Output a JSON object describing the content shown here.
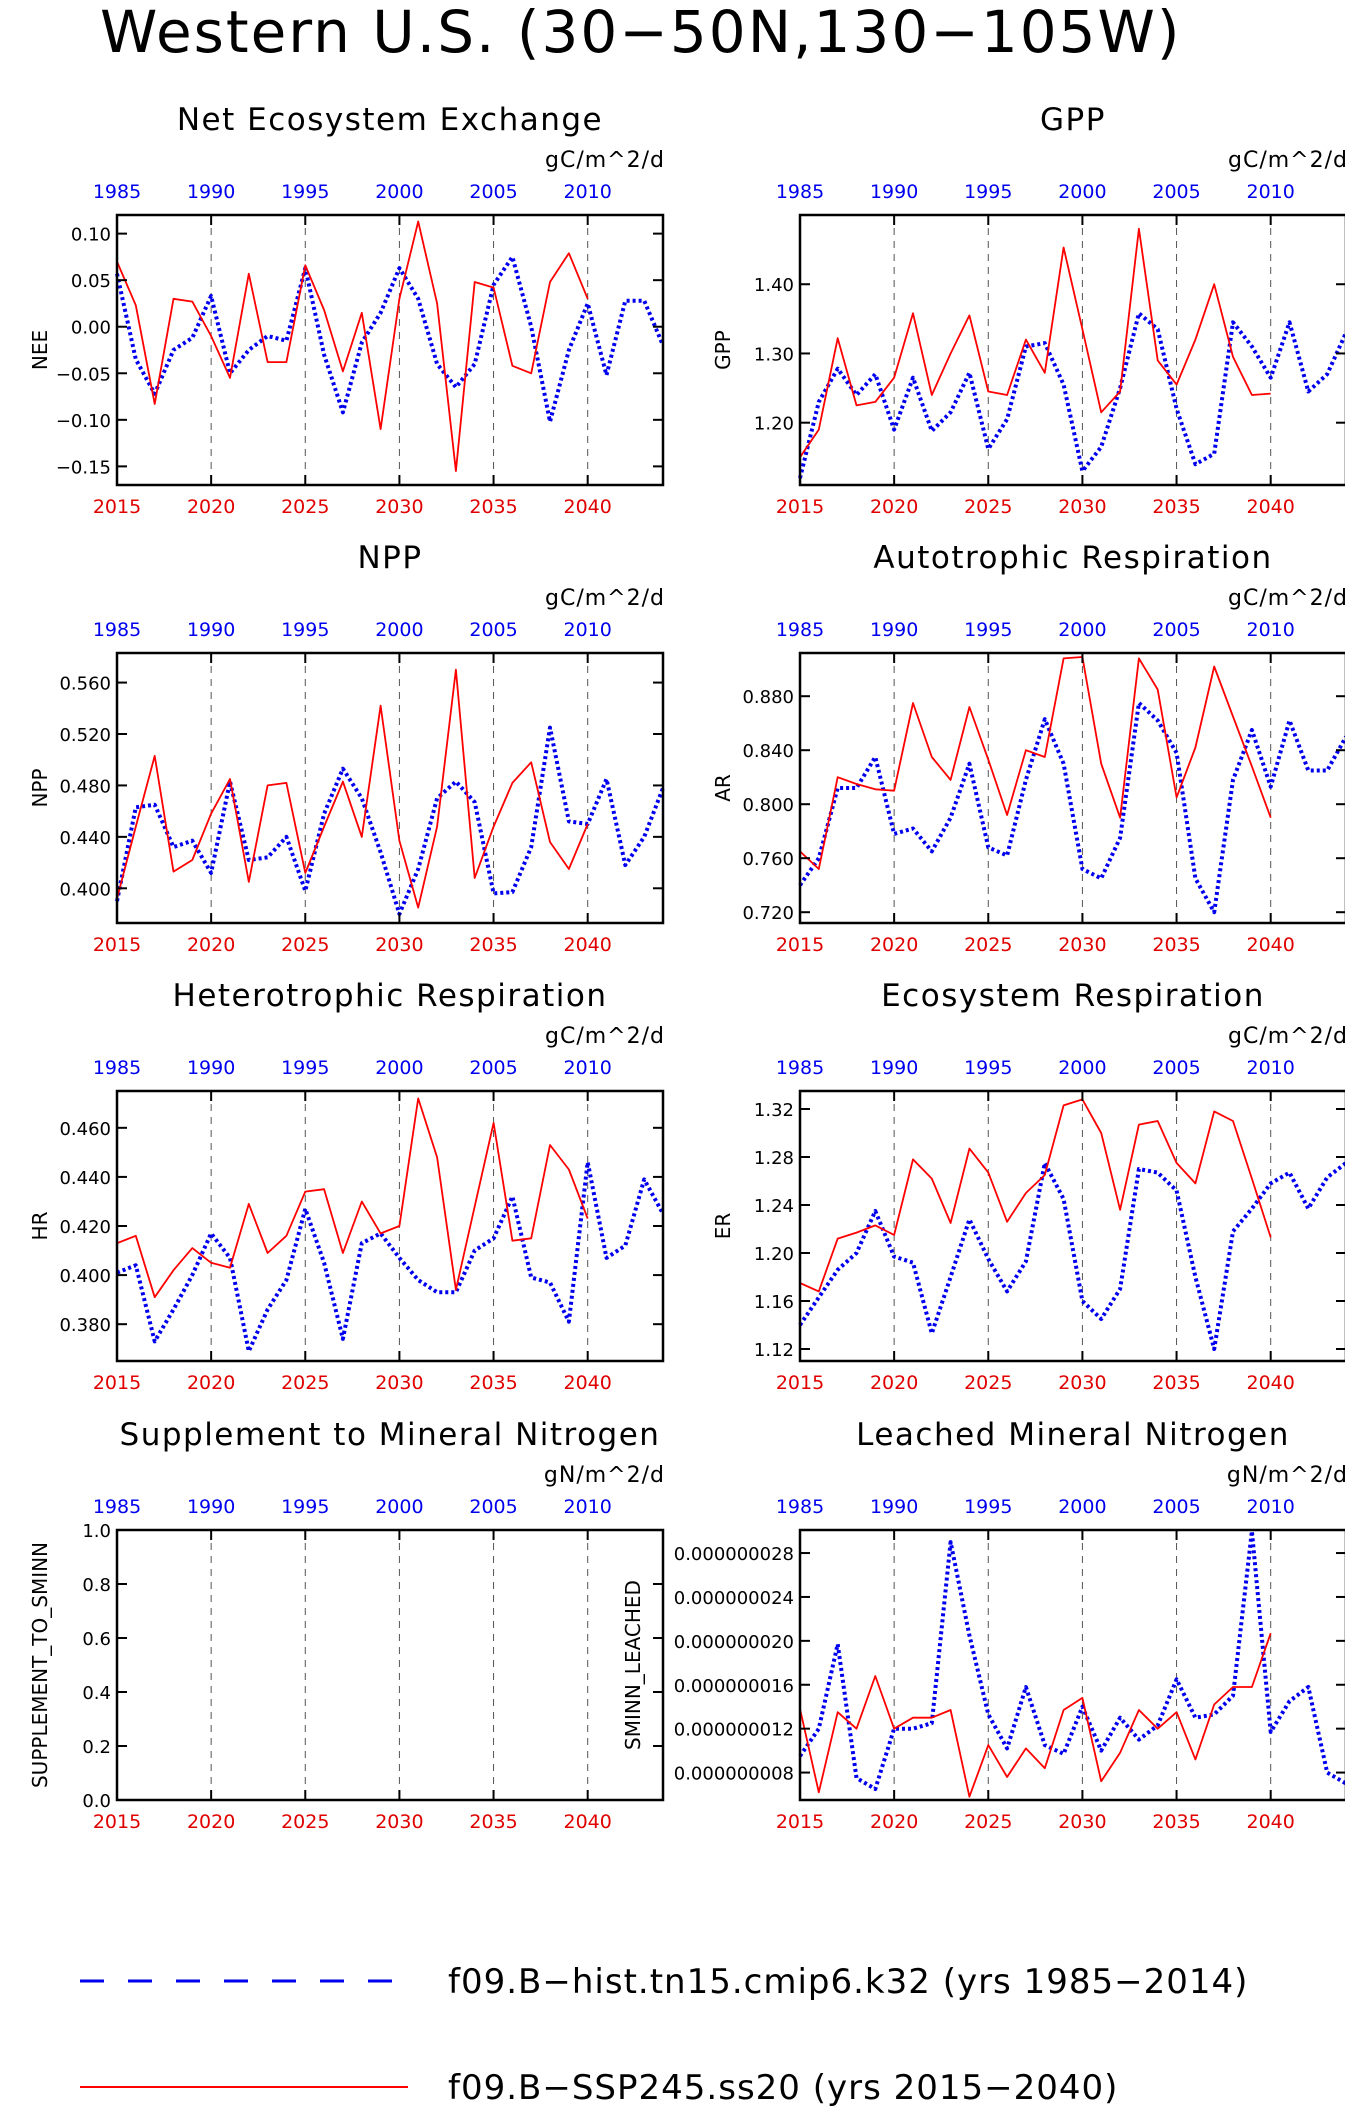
{
  "figure": {
    "title": "Western U.S. (30−50N,130−105W)",
    "colors": {
      "hist": "#0000ee",
      "ssp": "#ff0000",
      "grid": "#555555"
    }
  },
  "legend": {
    "items": [
      {
        "label": "f09.B−hist.tn15.cmip6.k32 (yrs 1985−2014)",
        "color": "#0000ee",
        "style": "dashed"
      },
      {
        "label": "f09.B−SSP245.ss20 (yrs 2015−2040)",
        "color": "#ff0000",
        "style": "solid"
      }
    ]
  },
  "chart_data": [
    {
      "type": "line",
      "title": "Net Ecosystem Exchange",
      "units": "gC/m^2/d",
      "ylabel": "NEE",
      "xlim_bottom": [
        2015,
        2044
      ],
      "xlim_top": [
        1985,
        2014
      ],
      "x_bottom_ticks": [
        "2015",
        "2020",
        "2025",
        "2030",
        "2035",
        "2040"
      ],
      "x_top_ticks": [
        "1985",
        "1990",
        "1995",
        "2000",
        "2005",
        "2010"
      ],
      "ylim": [
        -0.17,
        0.12
      ],
      "y_ticks": [
        0.1,
        0.05,
        0.0,
        -0.05,
        -0.1,
        -0.15
      ],
      "y_tick_labels": [
        "0.10",
        "0.05",
        "0.00",
        "−0.05",
        "−0.10",
        "−0.15"
      ],
      "series": [
        {
          "name": "f09.B−hist.tn15.cmip6.k32",
          "axis": "top",
          "start": 1985,
          "values": [
            0.057,
            -0.035,
            -0.072,
            -0.025,
            -0.012,
            0.033,
            -0.05,
            -0.025,
            -0.01,
            -0.015,
            0.063,
            -0.03,
            -0.092,
            -0.017,
            0.015,
            0.063,
            0.03,
            -0.04,
            -0.065,
            -0.04,
            0.045,
            0.075,
            0.0,
            -0.102,
            -0.025,
            0.025,
            -0.052,
            0.028,
            0.028,
            -0.02
          ]
        },
        {
          "name": "f09.B−SSP245.ss20",
          "axis": "bottom",
          "start": 2015,
          "values": [
            0.07,
            0.023,
            -0.083,
            0.03,
            0.027,
            -0.01,
            -0.055,
            0.057,
            -0.038,
            -0.038,
            0.066,
            0.018,
            -0.048,
            0.015,
            -0.11,
            0.03,
            0.113,
            0.025,
            -0.155,
            0.048,
            0.042,
            -0.042,
            -0.05,
            0.048,
            0.079,
            0.03
          ]
        }
      ]
    },
    {
      "type": "line",
      "title": "GPP",
      "units": "gC/m^2/d",
      "ylabel": "GPP",
      "xlim_bottom": [
        2015,
        2044
      ],
      "xlim_top": [
        1985,
        2014
      ],
      "x_bottom_ticks": [
        "2015",
        "2020",
        "2025",
        "2030",
        "2035",
        "2040"
      ],
      "x_top_ticks": [
        "1985",
        "1990",
        "1995",
        "2000",
        "2005",
        "2010"
      ],
      "ylim": [
        1.11,
        1.5
      ],
      "y_ticks": [
        1.4,
        1.3,
        1.2
      ],
      "y_tick_labels": [
        "1.40",
        "1.30",
        "1.20"
      ],
      "series": [
        {
          "name": "f09.B−hist.tn15.cmip6.k32",
          "axis": "top",
          "start": 1985,
          "values": [
            1.12,
            1.23,
            1.278,
            1.24,
            1.27,
            1.19,
            1.265,
            1.188,
            1.215,
            1.272,
            1.162,
            1.205,
            1.31,
            1.315,
            1.255,
            1.13,
            1.165,
            1.25,
            1.358,
            1.335,
            1.22,
            1.14,
            1.155,
            1.345,
            1.31,
            1.265,
            1.345,
            1.245,
            1.27,
            1.33
          ]
        },
        {
          "name": "f09.B−SSP245.ss20",
          "axis": "bottom",
          "start": 2015,
          "values": [
            1.15,
            1.19,
            1.322,
            1.225,
            1.23,
            1.265,
            1.358,
            1.24,
            1.3,
            1.355,
            1.245,
            1.24,
            1.32,
            1.272,
            1.453,
            1.335,
            1.215,
            1.245,
            1.48,
            1.29,
            1.255,
            1.32,
            1.4,
            1.295,
            1.24,
            1.242
          ]
        }
      ]
    },
    {
      "type": "line",
      "title": "NPP",
      "units": "gC/m^2/d",
      "ylabel": "NPP",
      "xlim_bottom": [
        2015,
        2044
      ],
      "xlim_top": [
        1985,
        2014
      ],
      "x_bottom_ticks": [
        "2015",
        "2020",
        "2025",
        "2030",
        "2035",
        "2040"
      ],
      "x_top_ticks": [
        "1985",
        "1990",
        "1995",
        "2000",
        "2005",
        "2010"
      ],
      "ylim": [
        0.373,
        0.583
      ],
      "y_ticks": [
        0.56,
        0.52,
        0.48,
        0.44,
        0.4
      ],
      "y_tick_labels": [
        "0.560",
        "0.520",
        "0.480",
        "0.440",
        "0.400"
      ],
      "series": [
        {
          "name": "f09.B−hist.tn15.cmip6.k32",
          "axis": "top",
          "start": 1985,
          "values": [
            0.39,
            0.463,
            0.465,
            0.432,
            0.437,
            0.412,
            0.483,
            0.422,
            0.424,
            0.44,
            0.398,
            0.458,
            0.493,
            0.47,
            0.428,
            0.38,
            0.415,
            0.47,
            0.483,
            0.467,
            0.396,
            0.397,
            0.432,
            0.525,
            0.452,
            0.45,
            0.485,
            0.418,
            0.44,
            0.478
          ]
        },
        {
          "name": "f09.B−SSP245.ss20",
          "axis": "bottom",
          "start": 2015,
          "values": [
            0.392,
            0.448,
            0.503,
            0.413,
            0.422,
            0.458,
            0.485,
            0.405,
            0.48,
            0.482,
            0.412,
            0.448,
            0.483,
            0.44,
            0.542,
            0.437,
            0.385,
            0.448,
            0.57,
            0.408,
            0.448,
            0.482,
            0.498,
            0.436,
            0.415,
            0.45
          ]
        }
      ]
    },
    {
      "type": "line",
      "title": "Autotrophic Respiration",
      "units": "gC/m^2/d",
      "ylabel": "AR",
      "xlim_bottom": [
        2015,
        2044
      ],
      "xlim_top": [
        1985,
        2014
      ],
      "x_bottom_ticks": [
        "2015",
        "2020",
        "2025",
        "2030",
        "2035",
        "2040"
      ],
      "x_top_ticks": [
        "1985",
        "1990",
        "1995",
        "2000",
        "2005",
        "2010"
      ],
      "ylim": [
        0.712,
        0.912
      ],
      "y_ticks": [
        0.88,
        0.84,
        0.8,
        0.76,
        0.72
      ],
      "y_tick_labels": [
        "0.880",
        "0.840",
        "0.800",
        "0.760",
        "0.720"
      ],
      "series": [
        {
          "name": "f09.B−hist.tn15.cmip6.k32",
          "axis": "top",
          "start": 1985,
          "values": [
            0.74,
            0.76,
            0.812,
            0.812,
            0.835,
            0.778,
            0.782,
            0.765,
            0.79,
            0.83,
            0.768,
            0.762,
            0.818,
            0.863,
            0.83,
            0.752,
            0.745,
            0.775,
            0.875,
            0.862,
            0.838,
            0.745,
            0.72,
            0.818,
            0.855,
            0.813,
            0.862,
            0.825,
            0.825,
            0.85
          ]
        },
        {
          "name": "f09.B−SSP245.ss20",
          "axis": "bottom",
          "start": 2015,
          "values": [
            0.765,
            0.752,
            0.82,
            0.815,
            0.811,
            0.81,
            0.875,
            0.835,
            0.818,
            0.872,
            0.833,
            0.792,
            0.84,
            0.835,
            0.908,
            0.909,
            0.83,
            0.79,
            0.908,
            0.885,
            0.805,
            0.842,
            0.902,
            0.865,
            0.828,
            0.79
          ]
        }
      ]
    },
    {
      "type": "line",
      "title": "Heterotrophic Respiration",
      "units": "gC/m^2/d",
      "ylabel": "HR",
      "xlim_bottom": [
        2015,
        2044
      ],
      "xlim_top": [
        1985,
        2014
      ],
      "x_bottom_ticks": [
        "2015",
        "2020",
        "2025",
        "2030",
        "2035",
        "2040"
      ],
      "x_top_ticks": [
        "1985",
        "1990",
        "1995",
        "2000",
        "2005",
        "2010"
      ],
      "ylim": [
        0.365,
        0.475
      ],
      "y_ticks": [
        0.46,
        0.44,
        0.42,
        0.4,
        0.38
      ],
      "y_tick_labels": [
        "0.460",
        "0.440",
        "0.420",
        "0.400",
        "0.380"
      ],
      "series": [
        {
          "name": "f09.B−hist.tn15.cmip6.k32",
          "axis": "top",
          "start": 1985,
          "values": [
            0.401,
            0.404,
            0.373,
            0.386,
            0.4,
            0.417,
            0.407,
            0.369,
            0.386,
            0.398,
            0.427,
            0.405,
            0.374,
            0.413,
            0.417,
            0.407,
            0.398,
            0.393,
            0.393,
            0.41,
            0.415,
            0.432,
            0.399,
            0.397,
            0.381,
            0.446,
            0.407,
            0.412,
            0.439,
            0.425
          ]
        },
        {
          "name": "f09.B−SSP245.ss20",
          "axis": "bottom",
          "start": 2015,
          "values": [
            0.413,
            0.416,
            0.391,
            0.402,
            0.411,
            0.405,
            0.403,
            0.429,
            0.409,
            0.416,
            0.434,
            0.435,
            0.409,
            0.43,
            0.417,
            0.42,
            0.472,
            0.448,
            0.394,
            0.428,
            0.462,
            0.414,
            0.415,
            0.453,
            0.443,
            0.423
          ]
        }
      ]
    },
    {
      "type": "line",
      "title": "Ecosystem Respiration",
      "units": "gC/m^2/d",
      "ylabel": "ER",
      "xlim_bottom": [
        2015,
        2044
      ],
      "xlim_top": [
        1985,
        2014
      ],
      "x_bottom_ticks": [
        "2015",
        "2020",
        "2025",
        "2030",
        "2035",
        "2040"
      ],
      "x_top_ticks": [
        "1985",
        "1990",
        "1995",
        "2000",
        "2005",
        "2010"
      ],
      "ylim": [
        1.11,
        1.335
      ],
      "y_ticks": [
        1.32,
        1.28,
        1.24,
        1.2,
        1.16,
        1.12
      ],
      "y_tick_labels": [
        "1.32",
        "1.28",
        "1.24",
        "1.20",
        "1.16",
        "1.12"
      ],
      "series": [
        {
          "name": "f09.B−hist.tn15.cmip6.k32",
          "axis": "top",
          "start": 1985,
          "values": [
            1.14,
            1.163,
            1.186,
            1.2,
            1.235,
            1.197,
            1.192,
            1.133,
            1.18,
            1.228,
            1.195,
            1.168,
            1.193,
            1.275,
            1.245,
            1.16,
            1.145,
            1.17,
            1.27,
            1.267,
            1.252,
            1.18,
            1.12,
            1.218,
            1.237,
            1.258,
            1.267,
            1.237,
            1.263,
            1.275
          ]
        },
        {
          "name": "f09.B−SSP245.ss20",
          "axis": "bottom",
          "start": 2015,
          "values": [
            1.175,
            1.168,
            1.212,
            1.217,
            1.223,
            1.215,
            1.278,
            1.262,
            1.225,
            1.287,
            1.267,
            1.226,
            1.25,
            1.265,
            1.323,
            1.328,
            1.3,
            1.236,
            1.307,
            1.31,
            1.275,
            1.258,
            1.318,
            1.31,
            1.262,
            1.213
          ]
        }
      ]
    },
    {
      "type": "line",
      "title": "Supplement to Mineral Nitrogen",
      "units": "gN/m^2/d",
      "ylabel": "SUPPLEMENT_TO_SMINN",
      "xlim_bottom": [
        2015,
        2044
      ],
      "xlim_top": [
        1985,
        2014
      ],
      "x_bottom_ticks": [
        "2015",
        "2020",
        "2025",
        "2030",
        "2035",
        "2040"
      ],
      "x_top_ticks": [
        "1985",
        "1990",
        "1995",
        "2000",
        "2005",
        "2010"
      ],
      "ylim": [
        0.0,
        1.0
      ],
      "y_ticks": [
        1.0,
        0.8,
        0.6,
        0.4,
        0.2,
        0.0
      ],
      "y_tick_labels": [
        "1.0",
        "0.8",
        "0.6",
        "0.4",
        "0.2",
        "0.0"
      ],
      "series": []
    },
    {
      "type": "line",
      "title": "Leached Mineral Nitrogen",
      "units": "gN/m^2/d",
      "ylabel": "SMINN_LEACHED",
      "xlim_bottom": [
        2015,
        2044
      ],
      "xlim_top": [
        1985,
        2014
      ],
      "x_bottom_ticks": [
        "2015",
        "2020",
        "2025",
        "2030",
        "2035",
        "2040"
      ],
      "x_top_ticks": [
        "1985",
        "1990",
        "1995",
        "2000",
        "2005",
        "2010"
      ],
      "ylim": [
        5.5e-09,
        3.01e-08
      ],
      "y_ticks": [
        2.8e-08,
        2.4e-08,
        2e-08,
        1.6e-08,
        1.2e-08,
        8e-09
      ],
      "y_tick_labels": [
        "0.000000028",
        "0.000000024",
        "0.000000020",
        "0.000000016",
        "0.000000012",
        "0.000000008"
      ],
      "series": [
        {
          "name": "f09.B−hist.tn15.cmip6.k32",
          "axis": "top",
          "start": 1985,
          "values": [
            9.5e-09,
            1.2e-08,
            1.97e-08,
            7.5e-09,
            6.5e-09,
            1.2e-08,
            1.2e-08,
            1.25e-08,
            2.9e-08,
            2.05e-08,
            1.33e-08,
            1.02e-08,
            1.58e-08,
            1.05e-08,
            9.7e-09,
            1.4e-08,
            1e-08,
            1.3e-08,
            1.1e-08,
            1.23e-08,
            1.65e-08,
            1.3e-08,
            1.33e-08,
            1.5e-08,
            3e-08,
            1.17e-08,
            1.45e-08,
            1.58e-08,
            8e-09,
            7e-09
          ]
        },
        {
          "name": "f09.B−SSP245.ss20",
          "axis": "bottom",
          "start": 2015,
          "values": [
            1.38e-08,
            6.2e-09,
            1.35e-08,
            1.2e-08,
            1.68e-08,
            1.2e-08,
            1.3e-08,
            1.3e-08,
            1.37e-08,
            5.8e-09,
            1.05e-08,
            7.6e-09,
            1.02e-08,
            8.4e-09,
            1.37e-08,
            1.48e-08,
            7.2e-09,
            9.8e-09,
            1.37e-08,
            1.2e-08,
            1.35e-08,
            9.2e-09,
            1.42e-08,
            1.58e-08,
            1.58e-08,
            2.07e-08
          ]
        }
      ]
    }
  ]
}
